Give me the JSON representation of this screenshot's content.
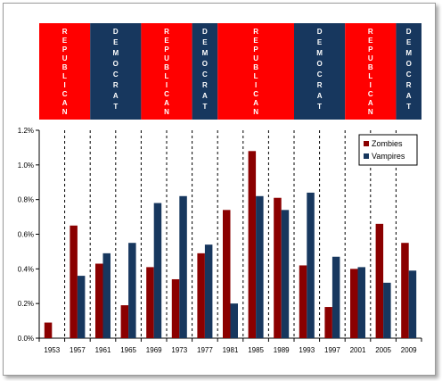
{
  "chart_data": {
    "type": "bar",
    "title": "",
    "xlabel": "",
    "ylabel": "",
    "categories": [
      "1953",
      "1957",
      "1961",
      "1965",
      "1969",
      "1973",
      "1977",
      "1981",
      "1985",
      "1989",
      "1993",
      "1997",
      "2001",
      "2005",
      "2009"
    ],
    "series": [
      {
        "name": "Zombies",
        "color": "#8b0000",
        "values": [
          0.09,
          0.65,
          0.43,
          0.19,
          0.41,
          0.34,
          0.49,
          0.74,
          1.08,
          0.81,
          0.42,
          0.18,
          0.4,
          0.66,
          0.55
        ]
      },
      {
        "name": "Vampires",
        "color": "#17375e",
        "values": [
          null,
          0.36,
          0.49,
          0.55,
          0.78,
          0.82,
          0.54,
          0.2,
          0.82,
          0.74,
          0.84,
          0.47,
          0.41,
          0.32,
          0.39
        ]
      }
    ],
    "ylim": [
      0,
      1.2
    ],
    "yticks": [
      "0.0%",
      "0.2%",
      "0.4%",
      "0.6%",
      "0.8%",
      "1.0%",
      "1.2%"
    ],
    "legend_position": "top-right",
    "grid": false,
    "separators": "dashed vertical lines between categories",
    "party_bands": [
      {
        "label": "REPUBLICAN",
        "color": "#ff0000",
        "span": [
          0,
          2
        ]
      },
      {
        "label": "DEMOCRAT",
        "color": "#17375e",
        "span": [
          2,
          4
        ]
      },
      {
        "label": "REPUBLICAN",
        "color": "#ff0000",
        "span": [
          4,
          6
        ]
      },
      {
        "label": "DEMOCRAT",
        "color": "#17375e",
        "span": [
          6,
          7
        ]
      },
      {
        "label": "REPUBLICAN",
        "color": "#ff0000",
        "span": [
          7,
          10
        ]
      },
      {
        "label": "DEMOCRAT",
        "color": "#17375e",
        "span": [
          10,
          12
        ]
      },
      {
        "label": "REPUBLICAN",
        "color": "#ff0000",
        "span": [
          12,
          14
        ]
      },
      {
        "label": "DEMOCRAT",
        "color": "#17375e",
        "span": [
          14,
          15
        ]
      }
    ]
  }
}
